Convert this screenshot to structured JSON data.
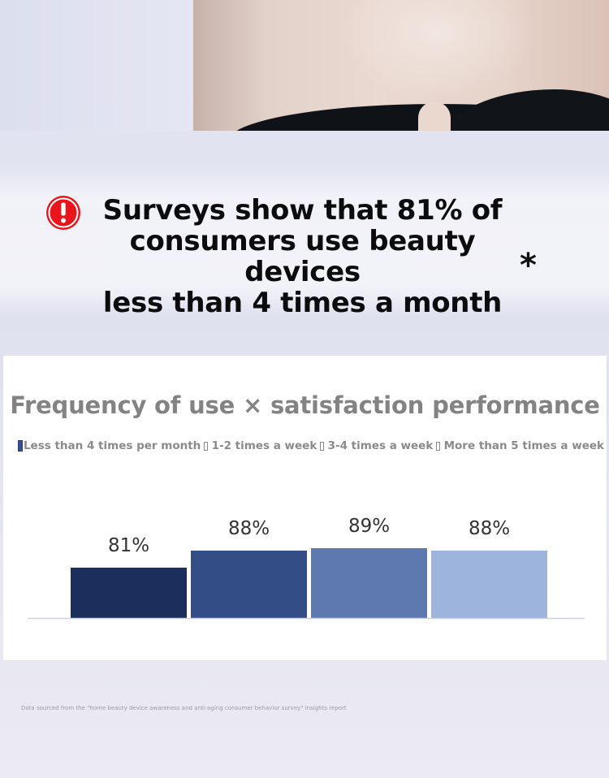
{
  "headline": {
    "lines": [
      "Surveys show that 81% of",
      "consumers use beauty devices",
      "less than 4 times a month"
    ],
    "asterisk": "*"
  },
  "colors": {
    "alert": "#e8161c",
    "series": [
      "#1c2f5c",
      "#334d86",
      "#5e78b0",
      "#9db5dd"
    ],
    "title": "#838383",
    "baseline": "#c9d3e0"
  },
  "icons": {
    "alert": "exclamation-circle-icon"
  },
  "chart_data": {
    "type": "bar",
    "title": "Frequency of use × satisfaction performance",
    "categories": [
      "Less than 4 times per month",
      "1-2 times a week",
      "3-4 times a week",
      "More than 5 times a week"
    ],
    "values": [
      81,
      88,
      89,
      88
    ],
    "value_labels": [
      "81%",
      "88%",
      "89%",
      "88%"
    ],
    "legend_position": "top",
    "grid": false,
    "ylim": [
      0,
      100
    ]
  },
  "source_note": "Data sourced from the \"home beauty device awareness and anti-aging consumer behavior survey\" insights report"
}
